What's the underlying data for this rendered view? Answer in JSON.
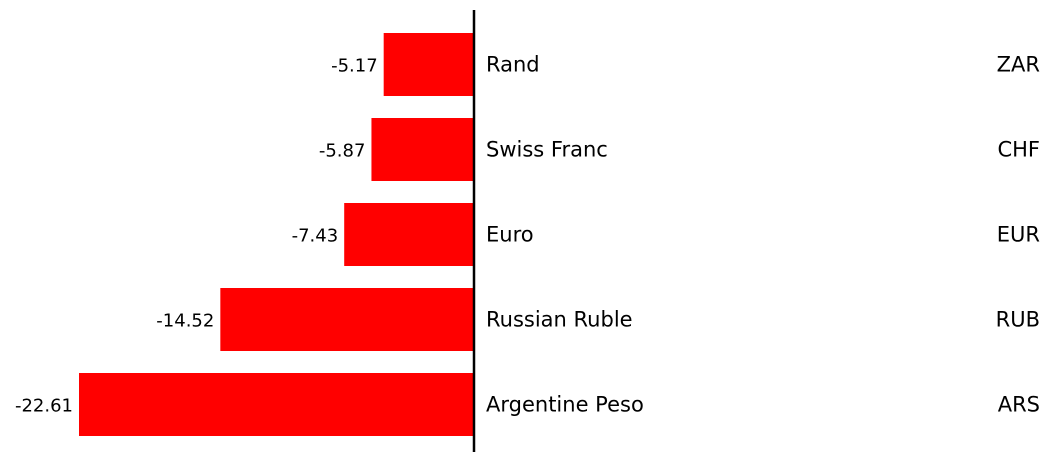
{
  "chart_data": {
    "type": "bar",
    "orientation": "horizontal",
    "categories": [
      "Rand",
      "Swiss Franc",
      "Euro",
      "Russian Ruble",
      "Argentine Peso"
    ],
    "codes": [
      "ZAR",
      "CHF",
      "EUR",
      "RUB",
      "ARS"
    ],
    "values": [
      -5.17,
      -5.87,
      -7.43,
      -14.52,
      -22.61
    ],
    "value_labels": [
      "-5.17",
      "-5.87",
      "-7.43",
      "-14.52",
      "-22.61"
    ],
    "bar_color": "#ff0000",
    "axis_color": "#000000",
    "xlim": [
      -22.61,
      0
    ],
    "grid": false,
    "legend": "none",
    "title": "",
    "xlabel": "",
    "ylabel": ""
  }
}
